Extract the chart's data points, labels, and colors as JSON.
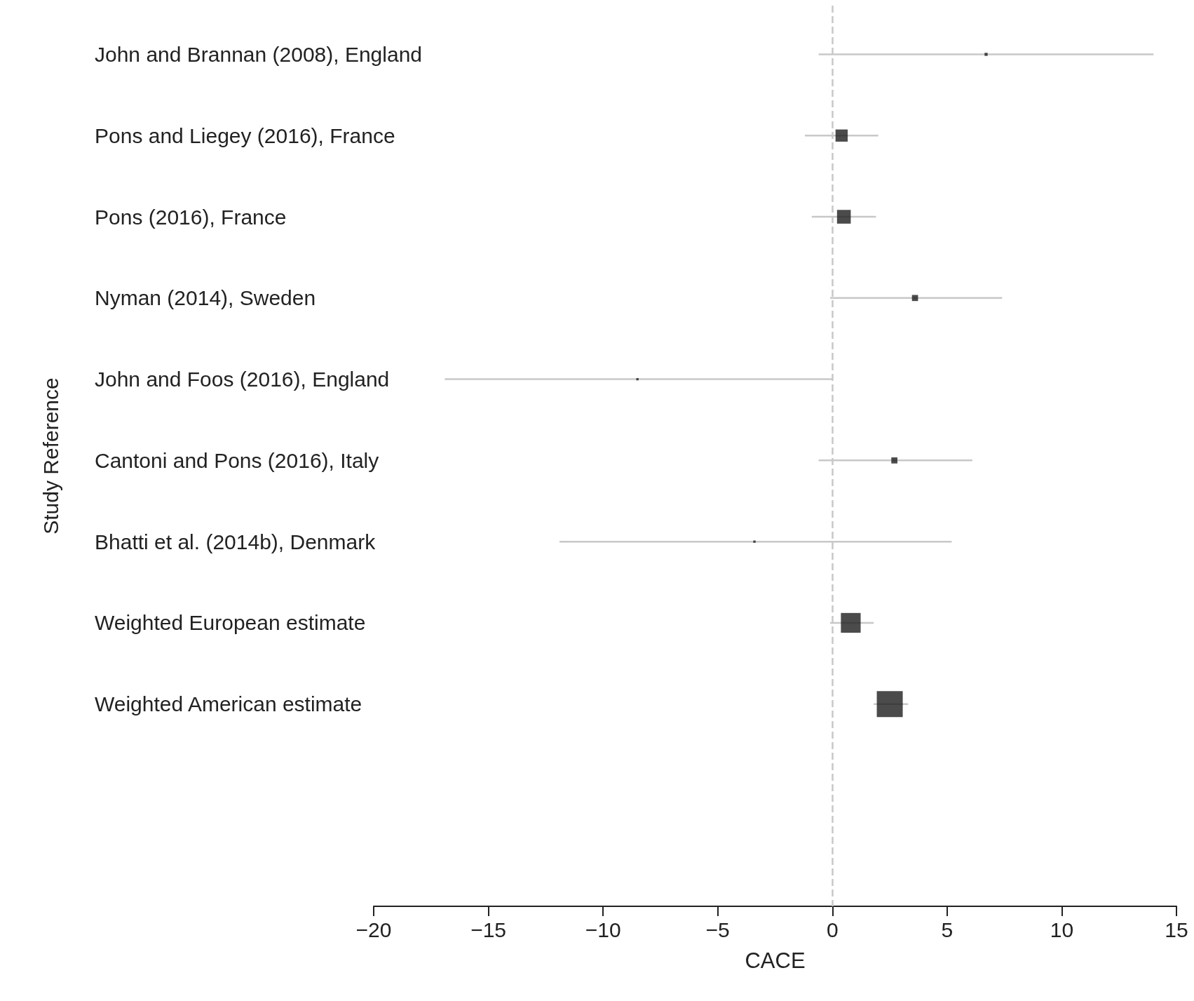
{
  "chart_data": {
    "type": "bubble",
    "orientation": "horizontal",
    "xlabel": "CACE",
    "ylabel": "Study Reference",
    "categories": [
      "John and Brannan (2008), England",
      "Pons and Liegey (2016), France",
      "Pons (2016), France",
      "Nyman (2014), Sweden",
      "John and Foos (2016), England",
      "Cantoni and Pons (2016), Italy",
      "Bhatti et al. (2014b), Denmark",
      "Weighted European estimate",
      "Weighted American estimate"
    ],
    "values": [
      6.7,
      0.4,
      0.5,
      3.6,
      -8.5,
      2.7,
      -3.4,
      0.8,
      2.5
    ],
    "errors": [
      [
        -0.6,
        14.0
      ],
      [
        -1.2,
        2.0
      ],
      [
        -0.9,
        1.9
      ],
      [
        -0.1,
        7.4
      ],
      [
        -16.9,
        0
      ],
      [
        -0.6,
        6.1
      ],
      [
        -11.9,
        5.2
      ],
      [
        -0.1,
        1.8
      ],
      [
        1.8,
        3.3
      ]
    ],
    "sizes": [
      0.014,
      0.22,
      0.28,
      0.055,
      0.008,
      0.055,
      0.008,
      0.58,
      1
    ],
    "color": "#1e1e1e",
    "marker": "square",
    "xlim": [
      -20,
      15
    ],
    "xticks": [
      -20,
      -15,
      -10,
      -5,
      0,
      5,
      10,
      15
    ],
    "ref_lines": [
      {
        "axis": "x",
        "value": 0,
        "color": "#c8c8c8",
        "line_style": "dashed"
      }
    ],
    "grid": false
  }
}
